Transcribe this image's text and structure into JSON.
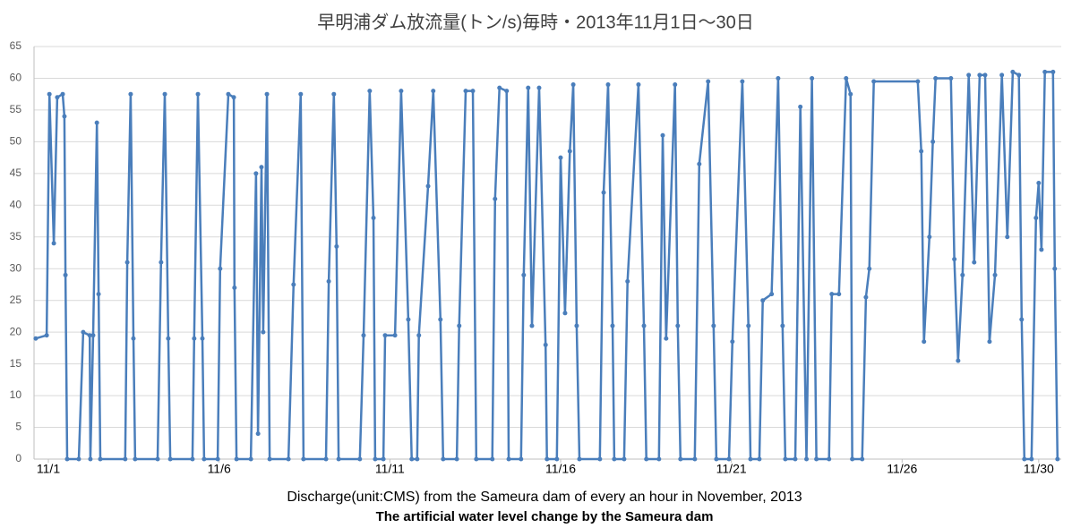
{
  "chart_data": {
    "type": "line",
    "title": "早明浦ダム放流量(トン/s)毎時・2013年11月1日～30日",
    "x_label": "Discharge(unit:CMS) from the Sameura dam of every an hour in November, 2013",
    "subtitle": "The artificial water level change by the Sameura dam",
    "xlim": [
      0.58,
      30.66
    ],
    "xticks": [
      {
        "value": 1,
        "label": "11/1"
      },
      {
        "value": 6,
        "label": "11/6"
      },
      {
        "value": 11,
        "label": "11/11"
      },
      {
        "value": 16,
        "label": "11/16"
      },
      {
        "value": 21,
        "label": "11/21"
      },
      {
        "value": 26,
        "label": "11/26"
      },
      {
        "value": 30,
        "label": "11/30"
      }
    ],
    "ylim": [
      0,
      65
    ],
    "yticks": [
      0,
      5,
      10,
      15,
      20,
      25,
      30,
      35,
      40,
      45,
      50,
      55,
      60,
      65
    ],
    "grid": true,
    "color": "#4a7ebb",
    "x": [
      0.63,
      0.95,
      1.03,
      1.16,
      1.26,
      1.42,
      1.47,
      1.5,
      1.55,
      1.89,
      2.02,
      2.21,
      2.23,
      2.31,
      2.42,
      2.47,
      2.52,
      3.25,
      3.31,
      3.41,
      3.49,
      3.54,
      4.2,
      4.3,
      4.41,
      4.51,
      4.57,
      5.22,
      5.27,
      5.38,
      5.51,
      5.56,
      5.96,
      6.03,
      6.27,
      6.43,
      6.45,
      6.51,
      6.93,
      7.08,
      7.14,
      7.24,
      7.29,
      7.4,
      7.48,
      8.03,
      8.18,
      8.39,
      8.47,
      9.13,
      9.21,
      9.36,
      9.44,
      9.5,
      10.12,
      10.23,
      10.41,
      10.52,
      10.57,
      10.81,
      10.86,
      11.15,
      11.33,
      11.54,
      11.64,
      11.8,
      11.85,
      12.12,
      12.27,
      12.48,
      12.56,
      12.96,
      13.03,
      13.22,
      13.43,
      13.53,
      14.0,
      14.08,
      14.21,
      14.42,
      14.48,
      14.84,
      14.92,
      15.05,
      15.16,
      15.37,
      15.56,
      15.6,
      15.89,
      16.0,
      16.13,
      16.27,
      16.37,
      16.47,
      16.55,
      17.15,
      17.26,
      17.39,
      17.52,
      17.57,
      17.86,
      17.96,
      18.28,
      18.44,
      18.51,
      18.88,
      18.99,
      19.09,
      19.35,
      19.43,
      19.51,
      19.93,
      20.06,
      20.32,
      20.48,
      20.56,
      20.93,
      21.03,
      21.32,
      21.5,
      21.56,
      21.82,
      21.92,
      22.18,
      22.37,
      22.5,
      22.58,
      22.87,
      23.02,
      23.2,
      23.36,
      23.49,
      23.86,
      23.94,
      24.15,
      24.36,
      24.49,
      24.54,
      24.83,
      24.94,
      25.04,
      25.17,
      26.46,
      26.56,
      26.64,
      26.8,
      26.9,
      26.98,
      27.43,
      27.53,
      27.64,
      27.77,
      27.95,
      28.11,
      28.27,
      28.43,
      28.56,
      28.72,
      28.92,
      29.08,
      29.24,
      29.42,
      29.5,
      29.58,
      29.79,
      29.92,
      30.0,
      30.08,
      30.18,
      30.42,
      30.47,
      30.55
    ],
    "values": [
      19,
      19.5,
      57.5,
      34,
      57,
      57.5,
      54,
      29,
      0,
      0,
      20,
      19.5,
      0,
      19.5,
      53,
      26,
      0,
      0,
      31,
      57.5,
      19,
      0,
      0,
      31,
      57.5,
      19,
      0,
      0,
      19,
      57.5,
      19,
      0,
      0,
      30,
      57.5,
      57,
      27,
      0,
      0,
      45,
      4,
      46,
      20,
      57.5,
      0,
      0,
      27.5,
      57.5,
      0,
      0,
      28,
      57.5,
      33.5,
      0,
      0,
      19.5,
      58,
      38,
      0,
      0,
      19.5,
      19.5,
      58,
      22,
      0,
      0,
      19.5,
      43,
      58,
      22,
      0,
      0,
      21,
      58,
      58,
      0,
      0,
      41,
      58.5,
      58,
      0,
      0,
      29,
      58.5,
      21,
      58.5,
      18,
      0,
      0,
      47.5,
      23,
      48.5,
      59,
      21,
      0,
      0,
      42,
      59,
      21,
      0,
      0,
      28,
      59,
      21,
      0,
      0,
      51,
      19,
      59,
      21,
      0,
      0,
      46.5,
      59.5,
      21,
      0,
      0,
      18.5,
      59.5,
      21,
      0,
      0,
      25,
      26,
      60,
      21,
      0,
      0,
      55.5,
      0,
      60,
      0,
      0,
      26,
      26,
      60,
      57.5,
      0,
      0,
      25.5,
      30,
      59.5,
      59.5,
      48.5,
      18.5,
      35,
      50,
      60,
      60,
      31.5,
      15.5,
      29,
      60.5,
      31,
      60.5,
      60.5,
      18.5,
      29,
      60.5,
      35,
      61,
      60.5,
      22,
      0,
      0,
      38,
      43.5,
      33,
      61,
      61,
      30,
      0
    ]
  }
}
